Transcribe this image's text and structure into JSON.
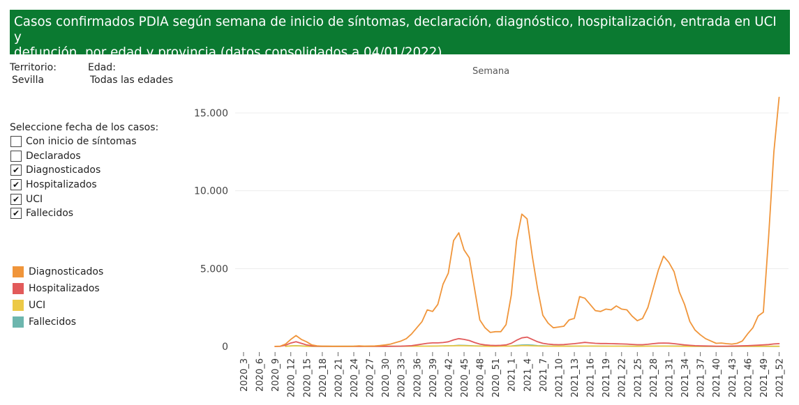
{
  "header": {
    "title_line1": "Casos confirmados PDIA según semana de inicio de síntomas, declaración, diagnóstico, hospitalización, entrada en UCI y",
    "title_line2": "defunción, por edad y provincia (datos consolidados a 04/01/2022)"
  },
  "filters": {
    "territory_label": "Territorio:",
    "territory_value": "Sevilla",
    "age_label": "Edad:",
    "age_value": "Todas las edades"
  },
  "case_date_selector": {
    "title": "Seleccione fecha de los casos:",
    "options": [
      {
        "label": "Con inicio de síntomas",
        "checked": false
      },
      {
        "label": "Declarados",
        "checked": false
      },
      {
        "label": "Diagnosticados",
        "checked": true
      },
      {
        "label": "Hospitalizados",
        "checked": true
      },
      {
        "label": "UCI",
        "checked": true
      },
      {
        "label": "Fallecidos",
        "checked": true
      }
    ],
    "check_mark": "✔"
  },
  "chart_data": {
    "type": "line",
    "title": "Semana",
    "xlabel": "",
    "ylabel": "",
    "ylim": [
      0,
      16000
    ],
    "y_ticks": [
      0,
      5000,
      10000,
      15000
    ],
    "y_tick_labels": [
      "0",
      "5.000",
      "10.000",
      "15.000"
    ],
    "x_ticks": [
      "2020_3",
      "2020_6",
      "2020_9",
      "2020_12",
      "2020_15",
      "2020_18",
      "2020_21",
      "2020_24",
      "2020_27",
      "2020_30",
      "2020_33",
      "2020_36",
      "2020_39",
      "2020_42",
      "2020_45",
      "2020_48",
      "2020_51",
      "2021_1",
      "2021_4",
      "2021_7",
      "2021_10",
      "2021_13",
      "2021_16",
      "2021_19",
      "2021_22",
      "2021_25",
      "2021_28",
      "2021_31",
      "2021_34",
      "2021_37",
      "2021_40",
      "2021_43",
      "2021_46",
      "2021_49",
      "2021_52"
    ],
    "week_range": [
      "2020_3",
      "2021_53"
    ],
    "grid": true,
    "legend_position": "left",
    "series": [
      {
        "name": "Diagnosticados",
        "color": "#f0953a",
        "points": [
          [
            "2020_9",
            5
          ],
          [
            "2020_10",
            20
          ],
          [
            "2020_11",
            150
          ],
          [
            "2020_12",
            450
          ],
          [
            "2020_13",
            700
          ],
          [
            "2020_14",
            450
          ],
          [
            "2020_15",
            300
          ],
          [
            "2020_16",
            100
          ],
          [
            "2020_17",
            40
          ],
          [
            "2020_18",
            20
          ],
          [
            "2020_19",
            15
          ],
          [
            "2020_20",
            10
          ],
          [
            "2020_22",
            10
          ],
          [
            "2020_24",
            15
          ],
          [
            "2020_25",
            40
          ],
          [
            "2020_26",
            20
          ],
          [
            "2020_28",
            30
          ],
          [
            "2020_29",
            60
          ],
          [
            "2020_30",
            100
          ],
          [
            "2020_31",
            150
          ],
          [
            "2020_32",
            250
          ],
          [
            "2020_33",
            350
          ],
          [
            "2020_34",
            500
          ],
          [
            "2020_35",
            800
          ],
          [
            "2020_36",
            1200
          ],
          [
            "2020_37",
            1600
          ],
          [
            "2020_38",
            2350
          ],
          [
            "2020_39",
            2250
          ],
          [
            "2020_40",
            2700
          ],
          [
            "2020_41",
            4000
          ],
          [
            "2020_42",
            4700
          ],
          [
            "2020_43",
            6800
          ],
          [
            "2020_44",
            7300
          ],
          [
            "2020_45",
            6200
          ],
          [
            "2020_46",
            5700
          ],
          [
            "2020_47",
            3700
          ],
          [
            "2020_48",
            1700
          ],
          [
            "2020_49",
            1200
          ],
          [
            "2020_50",
            900
          ],
          [
            "2020_51",
            950
          ],
          [
            "2020_52",
            950
          ],
          [
            "2020_53",
            1400
          ],
          [
            "2021_1",
            3300
          ],
          [
            "2021_2",
            6800
          ],
          [
            "2021_3",
            8500
          ],
          [
            "2021_4",
            8200
          ],
          [
            "2021_5",
            5800
          ],
          [
            "2021_6",
            3700
          ],
          [
            "2021_7",
            2000
          ],
          [
            "2021_8",
            1500
          ],
          [
            "2021_9",
            1200
          ],
          [
            "2021_10",
            1250
          ],
          [
            "2021_11",
            1300
          ],
          [
            "2021_12",
            1700
          ],
          [
            "2021_13",
            1800
          ],
          [
            "2021_14",
            3200
          ],
          [
            "2021_15",
            3100
          ],
          [
            "2021_16",
            2700
          ],
          [
            "2021_17",
            2300
          ],
          [
            "2021_18",
            2250
          ],
          [
            "2021_19",
            2400
          ],
          [
            "2021_20",
            2350
          ],
          [
            "2021_21",
            2600
          ],
          [
            "2021_22",
            2400
          ],
          [
            "2021_23",
            2350
          ],
          [
            "2021_24",
            1950
          ],
          [
            "2021_25",
            1650
          ],
          [
            "2021_26",
            1800
          ],
          [
            "2021_27",
            2500
          ],
          [
            "2021_28",
            3700
          ],
          [
            "2021_29",
            4900
          ],
          [
            "2021_30",
            5800
          ],
          [
            "2021_31",
            5400
          ],
          [
            "2021_32",
            4800
          ],
          [
            "2021_33",
            3500
          ],
          [
            "2021_34",
            2700
          ],
          [
            "2021_35",
            1600
          ],
          [
            "2021_36",
            1050
          ],
          [
            "2021_37",
            750
          ],
          [
            "2021_38",
            500
          ],
          [
            "2021_39",
            350
          ],
          [
            "2021_40",
            200
          ],
          [
            "2021_41",
            220
          ],
          [
            "2021_42",
            180
          ],
          [
            "2021_43",
            150
          ],
          [
            "2021_44",
            200
          ],
          [
            "2021_45",
            350
          ],
          [
            "2021_46",
            800
          ],
          [
            "2021_47",
            1200
          ],
          [
            "2021_48",
            1950
          ],
          [
            "2021_49",
            2200
          ],
          [
            "2021_50",
            7000
          ],
          [
            "2021_51",
            12500
          ],
          [
            "2021_52",
            16000
          ]
        ]
      },
      {
        "name": "Hospitalizados",
        "color": "#e25a5a",
        "points": [
          [
            "2020_9",
            2
          ],
          [
            "2020_10",
            10
          ],
          [
            "2020_11",
            80
          ],
          [
            "2020_12",
            220
          ],
          [
            "2020_13",
            300
          ],
          [
            "2020_14",
            200
          ],
          [
            "2020_15",
            100
          ],
          [
            "2020_16",
            40
          ],
          [
            "2020_17",
            20
          ],
          [
            "2020_18",
            10
          ],
          [
            "2020_20",
            5
          ],
          [
            "2020_26",
            5
          ],
          [
            "2020_30",
            8
          ],
          [
            "2020_33",
            20
          ],
          [
            "2020_35",
            50
          ],
          [
            "2020_36",
            100
          ],
          [
            "2020_37",
            150
          ],
          [
            "2020_38",
            200
          ],
          [
            "2020_39",
            230
          ],
          [
            "2020_40",
            230
          ],
          [
            "2020_41",
            250
          ],
          [
            "2020_42",
            300
          ],
          [
            "2020_43",
            420
          ],
          [
            "2020_44",
            500
          ],
          [
            "2020_45",
            450
          ],
          [
            "2020_46",
            380
          ],
          [
            "2020_47",
            250
          ],
          [
            "2020_48",
            150
          ],
          [
            "2020_49",
            100
          ],
          [
            "2020_50",
            70
          ],
          [
            "2020_51",
            60
          ],
          [
            "2020_52",
            70
          ],
          [
            "2020_53",
            100
          ],
          [
            "2021_1",
            200
          ],
          [
            "2021_2",
            400
          ],
          [
            "2021_3",
            550
          ],
          [
            "2021_4",
            600
          ],
          [
            "2021_5",
            450
          ],
          [
            "2021_6",
            300
          ],
          [
            "2021_7",
            200
          ],
          [
            "2021_8",
            150
          ],
          [
            "2021_9",
            120
          ],
          [
            "2021_10",
            110
          ],
          [
            "2021_11",
            120
          ],
          [
            "2021_12",
            150
          ],
          [
            "2021_13",
            180
          ],
          [
            "2021_14",
            220
          ],
          [
            "2021_15",
            260
          ],
          [
            "2021_16",
            230
          ],
          [
            "2021_17",
            200
          ],
          [
            "2021_18",
            190
          ],
          [
            "2021_19",
            190
          ],
          [
            "2021_20",
            180
          ],
          [
            "2021_21",
            170
          ],
          [
            "2021_22",
            160
          ],
          [
            "2021_23",
            150
          ],
          [
            "2021_24",
            130
          ],
          [
            "2021_25",
            110
          ],
          [
            "2021_26",
            110
          ],
          [
            "2021_27",
            140
          ],
          [
            "2021_28",
            180
          ],
          [
            "2021_29",
            210
          ],
          [
            "2021_30",
            220
          ],
          [
            "2021_31",
            210
          ],
          [
            "2021_32",
            180
          ],
          [
            "2021_33",
            140
          ],
          [
            "2021_34",
            100
          ],
          [
            "2021_35",
            70
          ],
          [
            "2021_36",
            50
          ],
          [
            "2021_37",
            40
          ],
          [
            "2021_38",
            30
          ],
          [
            "2021_39",
            25
          ],
          [
            "2021_40",
            20
          ],
          [
            "2021_42",
            20
          ],
          [
            "2021_44",
            30
          ],
          [
            "2021_46",
            50
          ],
          [
            "2021_48",
            80
          ],
          [
            "2021_50",
            120
          ],
          [
            "2021_51",
            160
          ],
          [
            "2021_52",
            180
          ]
        ]
      },
      {
        "name": "UCI",
        "color": "#ecc947",
        "points": [
          [
            "2020_11",
            10
          ],
          [
            "2020_12",
            30
          ],
          [
            "2020_13",
            40
          ],
          [
            "2020_14",
            25
          ],
          [
            "2020_15",
            10
          ],
          [
            "2020_16",
            5
          ],
          [
            "2020_38",
            20
          ],
          [
            "2020_43",
            40
          ],
          [
            "2020_44",
            50
          ],
          [
            "2020_45",
            45
          ],
          [
            "2020_47",
            25
          ],
          [
            "2020_50",
            10
          ],
          [
            "2021_2",
            30
          ],
          [
            "2021_3",
            50
          ],
          [
            "2021_4",
            55
          ],
          [
            "2021_5",
            40
          ],
          [
            "2021_7",
            20
          ],
          [
            "2021_10",
            15
          ],
          [
            "2021_15",
            25
          ],
          [
            "2021_20",
            20
          ],
          [
            "2021_25",
            12
          ],
          [
            "2021_30",
            22
          ],
          [
            "2021_35",
            10
          ],
          [
            "2021_40",
            5
          ],
          [
            "2021_46",
            5
          ],
          [
            "2021_52",
            15
          ]
        ]
      },
      {
        "name": "Fallecidos",
        "color": "#6db6ae",
        "points": [
          [
            "2020_11",
            10
          ],
          [
            "2020_12",
            35
          ],
          [
            "2020_13",
            50
          ],
          [
            "2020_14",
            35
          ],
          [
            "2020_15",
            20
          ],
          [
            "2020_16",
            10
          ],
          [
            "2020_38",
            20
          ],
          [
            "2020_43",
            50
          ],
          [
            "2020_44",
            70
          ],
          [
            "2020_45",
            65
          ],
          [
            "2020_47",
            40
          ],
          [
            "2020_50",
            20
          ],
          [
            "2021_1",
            30
          ],
          [
            "2021_2",
            60
          ],
          [
            "2021_3",
            90
          ],
          [
            "2021_4",
            100
          ],
          [
            "2021_5",
            80
          ],
          [
            "2021_6",
            50
          ],
          [
            "2021_8",
            25
          ],
          [
            "2021_12",
            15
          ],
          [
            "2021_16",
            25
          ],
          [
            "2021_20",
            20
          ],
          [
            "2021_25",
            12
          ],
          [
            "2021_30",
            25
          ],
          [
            "2021_32",
            25
          ],
          [
            "2021_36",
            10
          ],
          [
            "2021_40",
            5
          ],
          [
            "2021_46",
            5
          ],
          [
            "2021_52",
            10
          ]
        ]
      }
    ]
  }
}
